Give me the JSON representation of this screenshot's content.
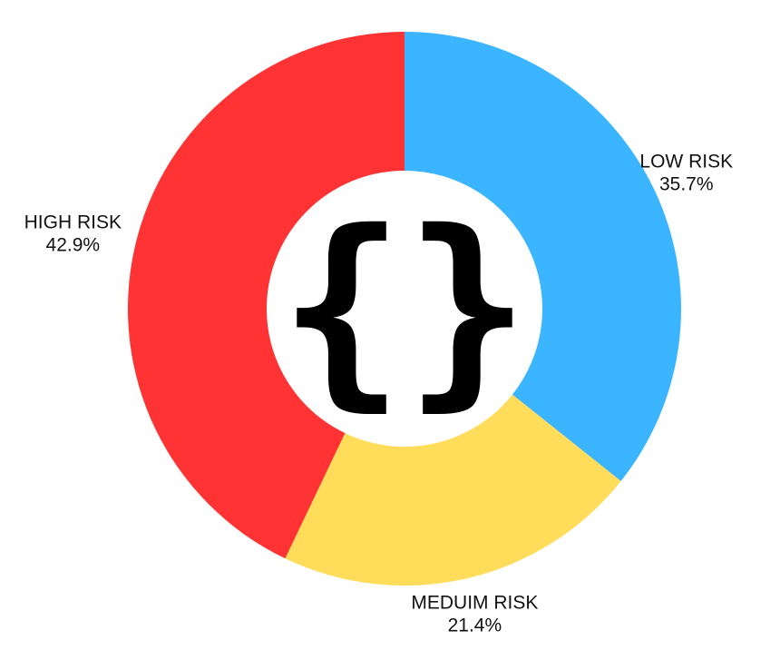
{
  "chart_data": {
    "type": "pie",
    "variant": "donut",
    "categories": [
      "LOW RISK",
      "MEDUIM RISK",
      "HIGH RISK"
    ],
    "values": [
      35.7,
      21.4,
      42.9
    ],
    "value_labels": [
      "35.7%",
      "21.4%",
      "42.9%"
    ],
    "colors": [
      "#3bb5ff",
      "#ffdc5a",
      "#ff3333"
    ],
    "start_angle_deg": 0,
    "direction": "clockwise",
    "legend": "none",
    "center_icon": "curly-braces-icon",
    "center_glyph": "{}"
  }
}
